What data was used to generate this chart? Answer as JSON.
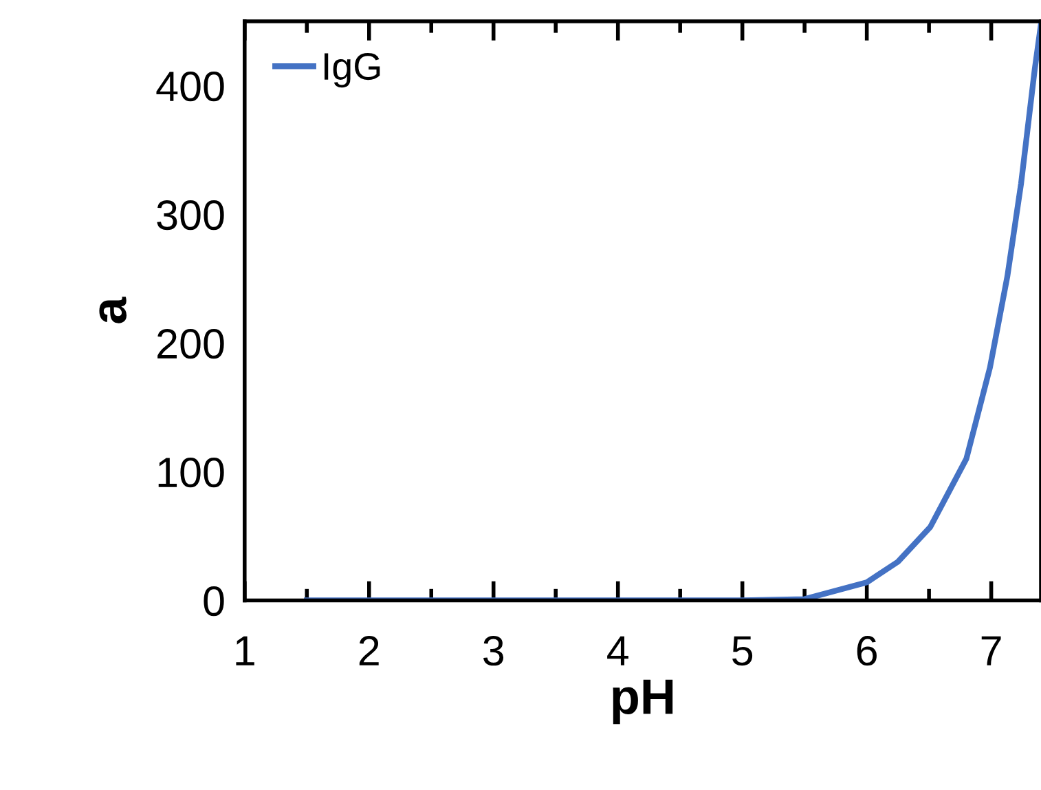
{
  "chart_data": {
    "type": "line",
    "xlabel": "pH",
    "ylabel": "a",
    "x": [
      1.5,
      2,
      3,
      4,
      5,
      5.5,
      6,
      6.25,
      6.51,
      6.8,
      6.99,
      7.13,
      7.24,
      7.35,
      7.4
    ],
    "series": [
      {
        "name": "IgG",
        "color": "#4472c4",
        "values": [
          0,
          0,
          0,
          0,
          0,
          1,
          14,
          30,
          57,
          110,
          181,
          252,
          324,
          413,
          448
        ]
      }
    ],
    "xlim": [
      1,
      7.4
    ],
    "ylim": [
      0,
      450
    ],
    "xticks": [
      1,
      {
        "value": 1.5,
        "label": null
      },
      2,
      {
        "value": 2.5,
        "label": null
      },
      3,
      {
        "value": 3.5,
        "label": null
      },
      4,
      {
        "value": 4.5,
        "label": null
      },
      5,
      {
        "value": 5.5,
        "label": null
      },
      6,
      {
        "value": 6.5,
        "label": null
      },
      7
    ],
    "yticks": [
      0,
      100,
      200,
      300,
      400
    ],
    "legend": "top left",
    "grid": false,
    "marker": "none",
    "line_style": "solid"
  }
}
